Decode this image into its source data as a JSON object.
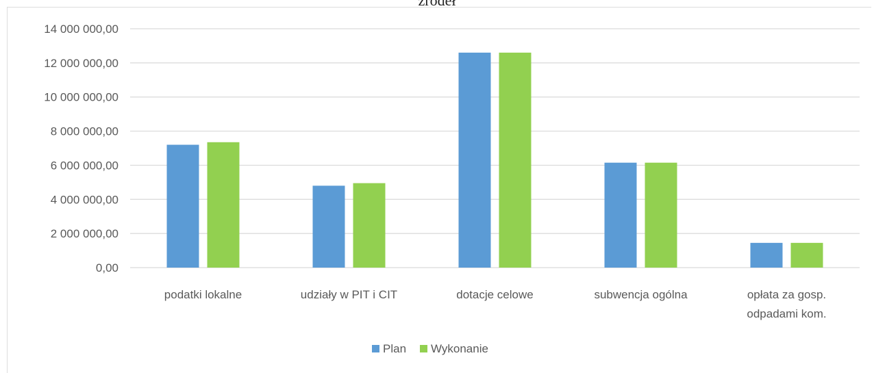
{
  "chart_data": {
    "type": "bar",
    "title": "źródeł",
    "categories": [
      [
        "podatki lokalne"
      ],
      [
        "udziały w PIT i CIT"
      ],
      [
        "dotacje celowe"
      ],
      [
        "subwencja ogólna"
      ],
      [
        "opłata za gosp.",
        "odpadami kom."
      ]
    ],
    "series": [
      {
        "name": "Plan",
        "color": "#5b9bd5",
        "values": [
          7200000,
          4800000,
          12600000,
          6150000,
          1450000
        ]
      },
      {
        "name": "Wykonanie",
        "color": "#92d050",
        "values": [
          7350000,
          4950000,
          12600000,
          6150000,
          1450000
        ]
      }
    ],
    "ylim": [
      0,
      14000000
    ],
    "yticks": [
      "0,00",
      "2 000 000,00",
      "4 000 000,00",
      "6 000 000,00",
      "8 000 000,00",
      "10 000 000,00",
      "12 000 000,00",
      "14 000 000,00"
    ],
    "ytick_values": [
      0,
      2000000,
      4000000,
      6000000,
      8000000,
      10000000,
      12000000,
      14000000
    ],
    "grid": true,
    "legend_position": "bottom",
    "gridColor": "#d9d9d9"
  }
}
